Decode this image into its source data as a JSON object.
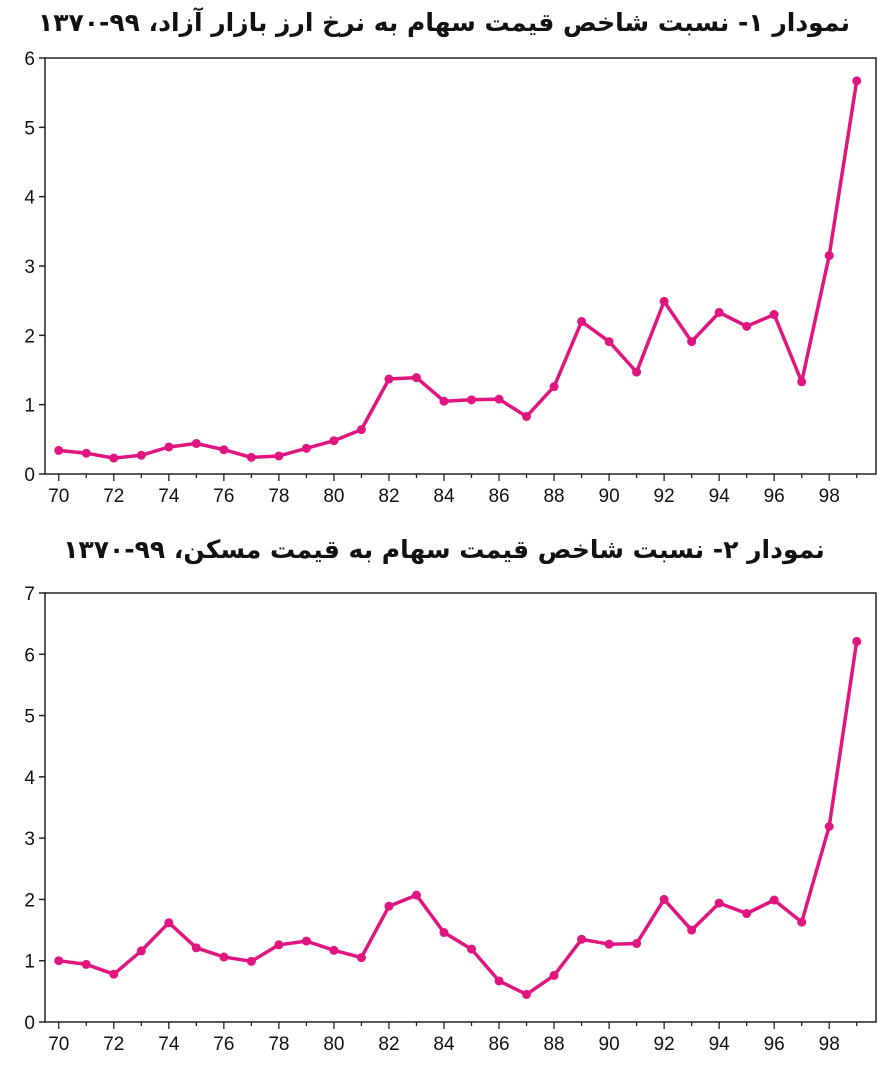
{
  "charts": [
    {
      "title": "نمودار ۱- نسبت شاخص قیمت سهام به نرخ ارز بازار آزاد، ۹۹-۱۳۷۰"
    },
    {
      "title": "نمودار ۲- نسبت شاخص قیمت سهام به قیمت مسکن، ۹۹-۱۳۷۰"
    }
  ],
  "line_color": "#e0157f",
  "chart_data": [
    {
      "type": "line",
      "title": "نمودار ۱- نسبت شاخص قیمت سهام به نرخ ارز بازار آزاد، ۹۹-۱۳۷۰",
      "xlabel": "",
      "ylabel": "",
      "x": [
        70,
        71,
        72,
        73,
        74,
        75,
        76,
        77,
        78,
        79,
        80,
        81,
        82,
        83,
        84,
        85,
        86,
        87,
        88,
        89,
        90,
        91,
        92,
        93,
        94,
        95,
        96,
        97,
        98,
        99
      ],
      "xticks": [
        70,
        72,
        74,
        76,
        78,
        80,
        82,
        84,
        86,
        88,
        90,
        92,
        94,
        96,
        98
      ],
      "xlim": [
        69.5,
        99.7
      ],
      "ylim": [
        0,
        6
      ],
      "yticks": [
        0,
        1,
        2,
        3,
        4,
        5,
        6
      ],
      "grid": false,
      "series": [
        {
          "values": [
            0.34,
            0.3,
            0.23,
            0.27,
            0.39,
            0.44,
            0.35,
            0.24,
            0.26,
            0.37,
            0.48,
            0.64,
            1.37,
            1.39,
            1.05,
            1.07,
            1.08,
            0.83,
            1.26,
            2.2,
            1.91,
            1.47,
            2.49,
            1.91,
            2.33,
            2.13,
            2.3,
            1.33,
            3.15,
            5.67
          ]
        }
      ]
    },
    {
      "type": "line",
      "title": "نمودار ۲- نسبت شاخص قیمت سهام به قیمت مسکن، ۹۹-۱۳۷۰",
      "xlabel": "",
      "ylabel": "",
      "x": [
        70,
        71,
        72,
        73,
        74,
        75,
        76,
        77,
        78,
        79,
        80,
        81,
        82,
        83,
        84,
        85,
        86,
        87,
        88,
        89,
        90,
        91,
        92,
        93,
        94,
        95,
        96,
        97,
        98,
        99
      ],
      "xticks": [
        70,
        72,
        74,
        76,
        78,
        80,
        82,
        84,
        86,
        88,
        90,
        92,
        94,
        96,
        98
      ],
      "xlim": [
        69.5,
        99.7
      ],
      "ylim": [
        0,
        7
      ],
      "yticks": [
        0,
        1,
        2,
        3,
        4,
        5,
        6,
        7
      ],
      "grid": false,
      "series": [
        {
          "values": [
            1.0,
            0.94,
            0.78,
            1.16,
            1.62,
            1.21,
            1.06,
            0.99,
            1.26,
            1.32,
            1.17,
            1.05,
            1.89,
            2.07,
            1.46,
            1.19,
            0.67,
            0.45,
            0.76,
            1.35,
            1.27,
            1.28,
            2.0,
            1.5,
            1.94,
            1.77,
            1.99,
            1.63,
            3.19,
            6.21
          ]
        }
      ]
    }
  ]
}
